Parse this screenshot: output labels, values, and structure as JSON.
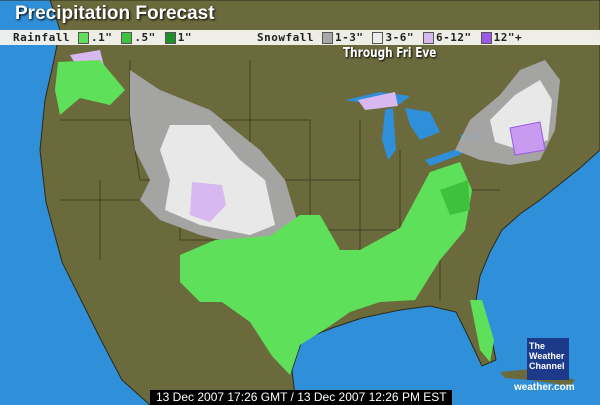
{
  "header": {
    "title": "Precipitation Forecast",
    "period": "Through Fri Eve"
  },
  "legend": {
    "rainfall_label": "Rainfall",
    "rainfall": [
      {
        "label": ".1\"",
        "color": "#5fe05a"
      },
      {
        "label": ".5\"",
        "color": "#3cc23c"
      },
      {
        "label": "1\"",
        "color": "#1f8f2a"
      }
    ],
    "snowfall_label": "Snowfall",
    "snowfall": [
      {
        "label": "1-3\"",
        "color": "#a8a8a8"
      },
      {
        "label": "3-6\"",
        "color": "#ececec"
      },
      {
        "label": "6-12\"",
        "color": "#d8b8f0"
      },
      {
        "label": "12\"+",
        "color": "#9a5ae6"
      }
    ]
  },
  "footer": {
    "timestamp": "13 Dec 2007 17:26 GMT / 13 Dec 2007 12:26 PM EST",
    "logo": "The Weather Channel",
    "site": "weather.com"
  },
  "colors": {
    "ocean": "#2f8fd8",
    "land": "#6b6a3c"
  }
}
